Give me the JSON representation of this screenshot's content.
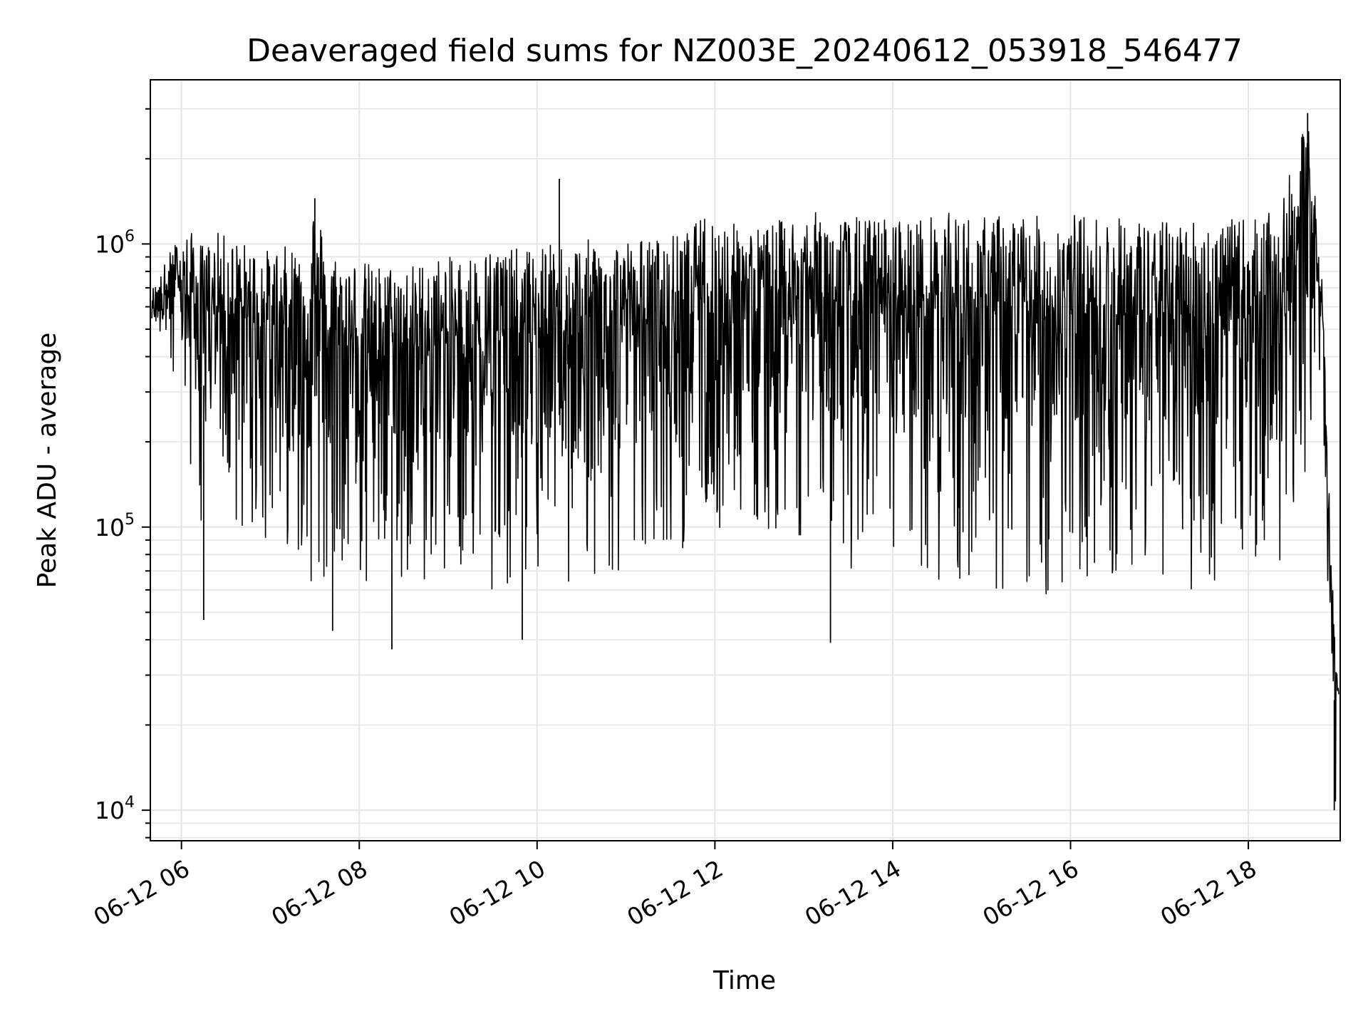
{
  "chart_data": {
    "type": "line",
    "title": "Deaveraged field sums for NZ003E_20240612_053918_546477",
    "xlabel": "Time",
    "ylabel": "Peak ADU - average",
    "y_scale": "log",
    "ylim": [
      7800,
      3800000
    ],
    "xlim": [
      "06-12 05:39",
      "06-12 19:02"
    ],
    "grid": true,
    "line_color": "#000000",
    "grid_color": "#e5e5e5",
    "x_ticks": [
      {
        "label": "06-12 06",
        "hour": 6
      },
      {
        "label": "06-12 08",
        "hour": 8
      },
      {
        "label": "06-12 10",
        "hour": 10
      },
      {
        "label": "06-12 12",
        "hour": 12
      },
      {
        "label": "06-12 14",
        "hour": 14
      },
      {
        "label": "06-12 16",
        "hour": 16
      },
      {
        "label": "06-12 18",
        "hour": 18
      }
    ],
    "y_ticks": [
      {
        "base": "10",
        "exp": "4",
        "value": 10000
      },
      {
        "base": "10",
        "exp": "5",
        "value": 100000
      },
      {
        "base": "10",
        "exp": "6",
        "value": 1000000
      }
    ],
    "series": [
      {
        "x": [
          "06-12 05:40",
          "06-12 05:45",
          "06-12 05:50",
          "06-12 05:55",
          "06-12 06:00",
          "06-12 06:07",
          "06-12 06:15",
          "06-12 06:25",
          "06-12 06:35",
          "06-12 06:45",
          "06-12 07:00",
          "06-12 07:15",
          "06-12 07:30",
          "06-12 07:40",
          "06-12 07:55",
          "06-12 08:10",
          "06-12 08:20",
          "06-12 08:35",
          "06-12 08:50",
          "06-12 09:05",
          "06-12 09:20",
          "06-12 09:35",
          "06-12 09:50",
          "06-12 10:05",
          "06-12 10:20",
          "06-12 10:40",
          "06-12 11:00",
          "06-12 11:20",
          "06-12 11:40",
          "06-12 11:55",
          "06-12 12:10",
          "06-12 12:30",
          "06-12 12:50",
          "06-12 13:10",
          "06-12 13:20",
          "06-12 13:40",
          "06-12 14:00",
          "06-12 14:20",
          "06-12 14:40",
          "06-12 15:00",
          "06-12 15:20",
          "06-12 15:40",
          "06-12 16:00",
          "06-12 16:20",
          "06-12 16:40",
          "06-12 17:00",
          "06-12 17:20",
          "06-12 17:40",
          "06-12 18:00",
          "06-12 18:20",
          "06-12 18:40",
          "06-12 18:45",
          "06-12 18:50",
          "06-12 18:53",
          "06-12 18:56",
          "06-12 18:59",
          "06-12 19:01"
        ],
        "upper": [
          700000,
          750000,
          900000,
          1000000,
          1100000,
          1100000,
          1000000,
          1100000,
          1050000,
          1000000,
          950000,
          1000000,
          1400000,
          950000,
          900000,
          850000,
          850000,
          850000,
          900000,
          900000,
          950000,
          1000000,
          950000,
          1000000,
          1000000,
          1050000,
          1050000,
          1050000,
          1100000,
          1300000,
          1200000,
          1150000,
          1250000,
          1300000,
          1250000,
          1250000,
          1250000,
          1250000,
          1300000,
          1250000,
          1300000,
          1250000,
          1300000,
          1250000,
          1250000,
          1200000,
          1250000,
          1200000,
          1250000,
          1300000,
          2800000,
          1800000,
          700000,
          250000,
          80000,
          35000,
          30000
        ],
        "lower": [
          400000,
          450000,
          300000,
          250000,
          200000,
          110000,
          100000,
          100000,
          95000,
          90000,
          90000,
          85000,
          60000,
          55000,
          60000,
          55000,
          60000,
          65000,
          65000,
          70000,
          60000,
          60000,
          60000,
          65000,
          60000,
          60000,
          65000,
          75000,
          85000,
          90000,
          95000,
          100000,
          95000,
          90000,
          60000,
          70000,
          65000,
          60000,
          60000,
          60000,
          55000,
          55000,
          60000,
          65000,
          62000,
          60000,
          60000,
          60000,
          65000,
          70000,
          150000,
          200000,
          300000,
          60000,
          22000,
          10000,
          18000
        ]
      }
    ],
    "notable_minima": [
      {
        "x": "06-12 06:15",
        "y": 47000
      },
      {
        "x": "06-12 07:42",
        "y": 43000
      },
      {
        "x": "06-12 08:22",
        "y": 37000
      },
      {
        "x": "06-12 09:50",
        "y": 40000
      },
      {
        "x": "06-12 13:18",
        "y": 39000
      },
      {
        "x": "06-12 18:58",
        "y": 10000
      }
    ],
    "notable_maxima": [
      {
        "x": "06-12 07:30",
        "y": 1450000
      },
      {
        "x": "06-12 10:15",
        "y": 1700000
      },
      {
        "x": "06-12 18:40",
        "y": 2900000
      }
    ]
  }
}
